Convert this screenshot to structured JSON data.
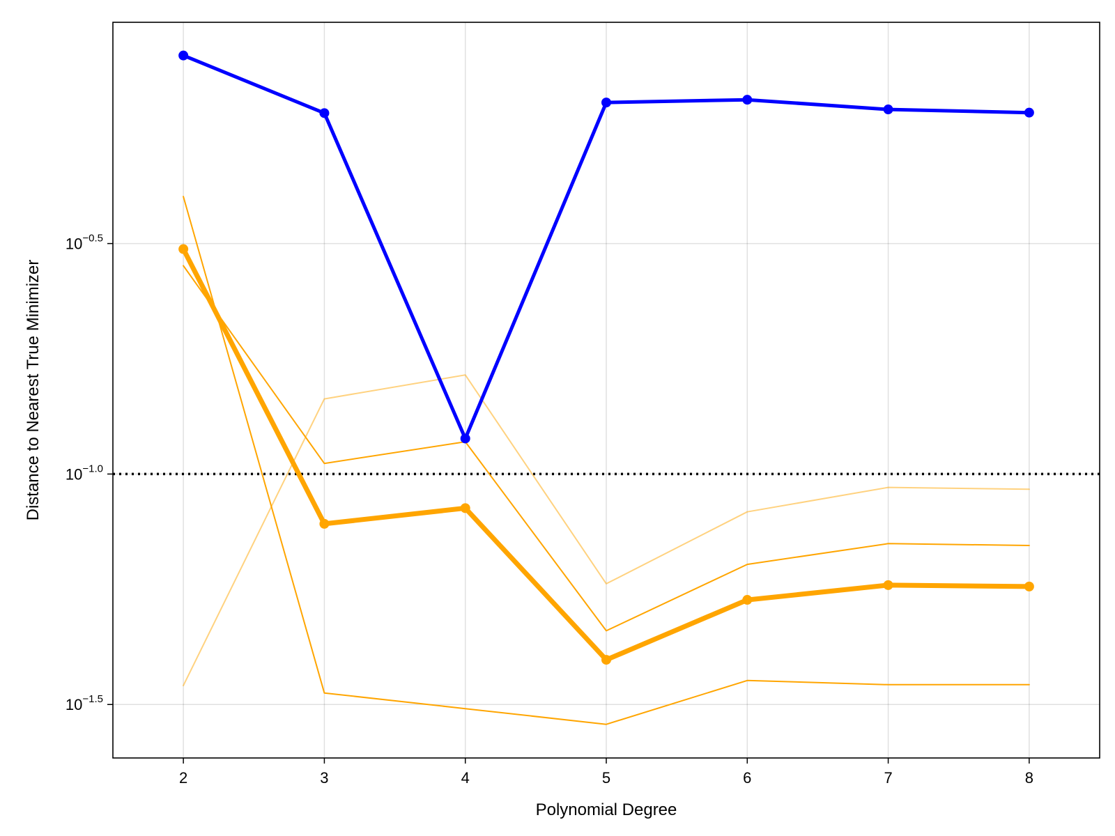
{
  "chart_data": {
    "type": "line",
    "title": "",
    "xlabel": "Polynomial Degree",
    "ylabel": "Distance to Nearest True Minimizer",
    "y_scale": "log10",
    "x": [
      2,
      3,
      4,
      5,
      6,
      7,
      8
    ],
    "xlim": [
      1.5,
      8.5
    ],
    "ylim_log10": [
      -1.616,
      -0.02
    ],
    "x_ticks": [
      {
        "value": 2,
        "label": "2"
      },
      {
        "value": 3,
        "label": "3"
      },
      {
        "value": 4,
        "label": "4"
      },
      {
        "value": 5,
        "label": "5"
      },
      {
        "value": 6,
        "label": "6"
      },
      {
        "value": 7,
        "label": "7"
      },
      {
        "value": 8,
        "label": "8"
      }
    ],
    "y_ticks": [
      {
        "log10": -0.5,
        "base": "10",
        "exponent": "−0.5"
      },
      {
        "log10": -1.0,
        "base": "10",
        "exponent": "−1.0"
      },
      {
        "log10": -1.5,
        "base": "10",
        "exponent": "−1.5"
      }
    ],
    "grid": true,
    "legend": false,
    "reference_line": {
      "log10": -1.0,
      "color": "#000000",
      "style": "dotted"
    },
    "series": [
      {
        "color": "#ffa500",
        "opacity": 0.5,
        "width": 2,
        "markers": false,
        "log10_values": [
          -1.459,
          -0.837,
          -0.785,
          -1.238,
          -1.082,
          -1.029,
          -1.033
        ]
      },
      {
        "color": "#ffa500",
        "opacity": 1.0,
        "width": 2,
        "markers": false,
        "log10_values": [
          -0.548,
          -0.977,
          -0.93,
          -1.34,
          -1.196,
          -1.151,
          -1.155
        ]
      },
      {
        "color": "#ffa500",
        "opacity": 1.0,
        "width": 2,
        "markers": false,
        "log10_values": [
          -0.398,
          -1.475,
          -1.509,
          -1.543,
          -1.448,
          -1.457,
          -1.457
        ]
      },
      {
        "color": "#ffa500",
        "opacity": 1.0,
        "width": 7,
        "markers": true,
        "log10_values": [
          -0.512,
          -1.108,
          -1.074,
          -1.403,
          -1.273,
          -1.241,
          -1.244
        ]
      },
      {
        "color": "#0000ff",
        "opacity": 1.0,
        "width": 5,
        "markers": true,
        "log10_values": [
          -0.092,
          -0.217,
          -0.923,
          -0.194,
          -0.188,
          -0.209,
          -0.216
        ]
      }
    ]
  }
}
